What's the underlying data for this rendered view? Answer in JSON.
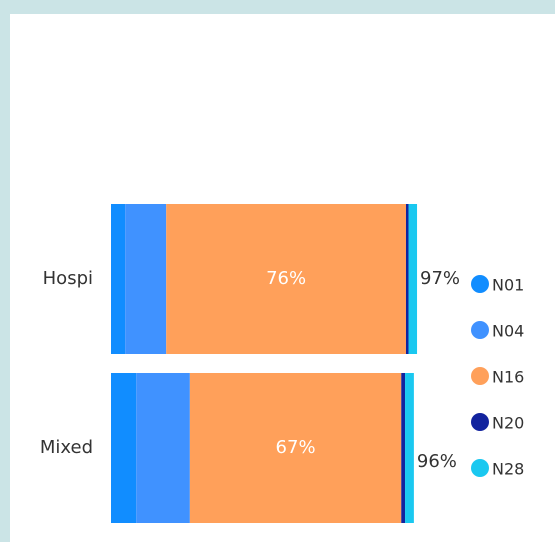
{
  "chart_data": {
    "type": "stacked_bar_100",
    "categories": [
      "Hospi",
      "Mixed"
    ],
    "xlim": [
      0,
      100
    ],
    "series": [
      {
        "name": "N01",
        "color": "#118DFF",
        "values": [
          4.5,
          8
        ]
      },
      {
        "name": "N04",
        "color": "#4092FF",
        "values": [
          13,
          17
        ]
      },
      {
        "name": "N16",
        "color": "#FFA05A",
        "values": [
          76,
          67
        ],
        "value_labels": [
          "76%",
          "67%"
        ]
      },
      {
        "name": "N20",
        "color": "#12239E",
        "values": [
          0.8,
          1.2
        ]
      },
      {
        "name": "N28",
        "color": "#1AC8F0",
        "values": [
          2.7,
          2.8
        ]
      }
    ],
    "totals": [
      97,
      96
    ],
    "total_labels": [
      "97%",
      "96%"
    ]
  }
}
